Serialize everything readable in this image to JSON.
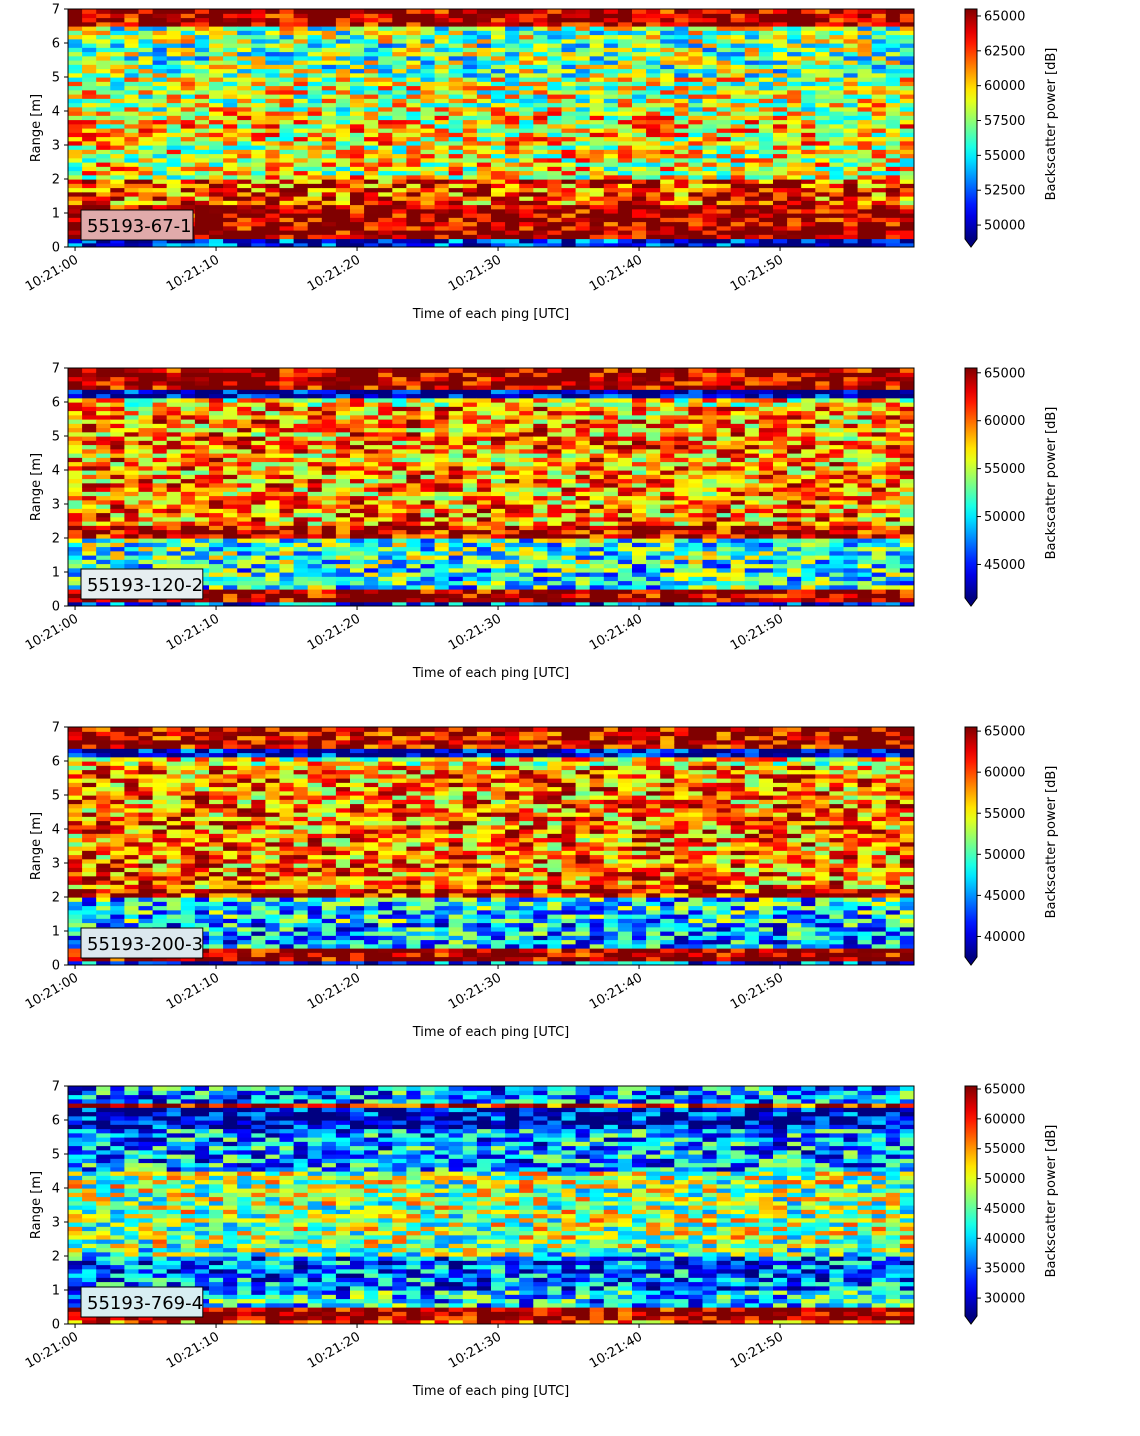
{
  "figure": {
    "colormap": "jet",
    "panels": [
      {
        "id": "55193-67-1",
        "label": "55193-67-1",
        "label_box_color": "#e0aaaa",
        "xlabel": "Time of each ping [UTC]",
        "ylabel": "Range [m]",
        "colorbar_label": "Backscatter power [dB]"
      },
      {
        "id": "55193-120-2",
        "label": "55193-120-2",
        "label_box_color": "#e6eef0",
        "xlabel": "Time of each ping [UTC]",
        "ylabel": "Range [m]",
        "colorbar_label": "Backscatter power [dB]"
      },
      {
        "id": "55193-200-3",
        "label": "55193-200-3",
        "label_box_color": "#dce8ee",
        "xlabel": "Time of each ping [UTC]",
        "ylabel": "Range [m]",
        "colorbar_label": "Backscatter power [dB]"
      },
      {
        "id": "55193-769-4",
        "label": "55193-769-4",
        "label_box_color": "#d8eef2",
        "xlabel": "Time of each ping [UTC]",
        "ylabel": "Range [m]",
        "colorbar_label": "Backscatter power [dB]"
      }
    ]
  },
  "chart_data": [
    {
      "type": "heatmap",
      "title": "",
      "annotation": "55193-67-1",
      "xlabel": "Time of each ping [UTC]",
      "ylabel": "Range [m]",
      "x_range": [
        "10:21:00",
        "10:21:59"
      ],
      "x_ticks": [
        "10:21:00",
        "10:21:10",
        "10:21:20",
        "10:21:30",
        "10:21:40",
        "10:21:50"
      ],
      "ylim": [
        0,
        7
      ],
      "y_ticks": [
        0,
        1,
        2,
        3,
        4,
        5,
        6,
        7
      ],
      "colorbar": {
        "label": "Backscatter power [dB]",
        "min": 49000,
        "max": 65500,
        "ticks": [
          50000,
          52500,
          55000,
          57500,
          60000,
          62500,
          65000
        ],
        "extend": "min"
      },
      "range_profile": [
        [
          0.0,
          0.2,
          50500
        ],
        [
          0.2,
          1.2,
          65500
        ],
        [
          1.2,
          1.55,
          62000
        ],
        [
          1.55,
          2.0,
          62500
        ],
        [
          2.0,
          3.0,
          59000
        ],
        [
          3.0,
          4.0,
          59500
        ],
        [
          4.0,
          5.0,
          58500
        ],
        [
          5.0,
          6.0,
          57000
        ],
        [
          6.0,
          6.45,
          57500
        ],
        [
          6.45,
          7.0,
          65500
        ]
      ]
    },
    {
      "type": "heatmap",
      "title": "",
      "annotation": "55193-120-2",
      "xlabel": "Time of each ping [UTC]",
      "ylabel": "Range [m]",
      "x_range": [
        "10:21:00",
        "10:21:59"
      ],
      "x_ticks": [
        "10:21:00",
        "10:21:10",
        "10:21:20",
        "10:21:30",
        "10:21:40",
        "10:21:50"
      ],
      "ylim": [
        0,
        7
      ],
      "y_ticks": [
        0,
        1,
        2,
        3,
        4,
        5,
        6,
        7
      ],
      "colorbar": {
        "label": "Backscatter power [dB]",
        "min": 41500,
        "max": 65500,
        "ticks": [
          45000,
          50000,
          55000,
          60000,
          65000
        ],
        "extend": "min"
      },
      "range_profile": [
        [
          0.0,
          0.15,
          45000
        ],
        [
          0.15,
          0.55,
          65500
        ],
        [
          0.55,
          1.3,
          51000
        ],
        [
          1.3,
          2.0,
          52000
        ],
        [
          2.0,
          2.4,
          64500
        ],
        [
          2.4,
          5.9,
          59000
        ],
        [
          5.9,
          6.15,
          57000
        ],
        [
          6.15,
          6.35,
          42000
        ],
        [
          6.35,
          7.0,
          65500
        ]
      ]
    },
    {
      "type": "heatmap",
      "title": "",
      "annotation": "55193-200-3",
      "xlabel": "Time of each ping [UTC]",
      "ylabel": "Range [m]",
      "x_range": [
        "10:21:00",
        "10:21:59"
      ],
      "x_ticks": [
        "10:21:00",
        "10:21:10",
        "10:21:20",
        "10:21:30",
        "10:21:40",
        "10:21:50"
      ],
      "ylim": [
        0,
        7
      ],
      "y_ticks": [
        0,
        1,
        2,
        3,
        4,
        5,
        6,
        7
      ],
      "colorbar": {
        "label": "Backscatter power [dB]",
        "min": 37500,
        "max": 65500,
        "ticks": [
          40000,
          45000,
          50000,
          55000,
          60000,
          65000
        ],
        "extend": "min"
      },
      "range_profile": [
        [
          0.0,
          0.15,
          42000
        ],
        [
          0.15,
          0.5,
          65500
        ],
        [
          0.5,
          1.3,
          46000
        ],
        [
          1.3,
          2.0,
          47500
        ],
        [
          2.0,
          2.3,
          63000
        ],
        [
          2.3,
          5.9,
          58500
        ],
        [
          5.9,
          6.1,
          55000
        ],
        [
          6.1,
          6.4,
          39000
        ],
        [
          6.4,
          7.0,
          64500
        ]
      ]
    },
    {
      "type": "heatmap",
      "title": "",
      "annotation": "55193-769-4",
      "xlabel": "Time of each ping [UTC]",
      "ylabel": "Range [m]",
      "x_range": [
        "10:21:00",
        "10:21:59"
      ],
      "x_ticks": [
        "10:21:00",
        "10:21:10",
        "10:21:20",
        "10:21:30",
        "10:21:40",
        "10:21:50"
      ],
      "ylim": [
        0,
        7
      ],
      "y_ticks": [
        0,
        1,
        2,
        3,
        4,
        5,
        6,
        7
      ],
      "colorbar": {
        "label": "Backscatter power [dB]",
        "min": 27000,
        "max": 65500,
        "ticks": [
          30000,
          35000,
          40000,
          45000,
          50000,
          55000,
          60000,
          65000
        ],
        "extend": "min"
      },
      "range_profile": [
        [
          0.0,
          0.1,
          58000
        ],
        [
          0.1,
          0.5,
          65500
        ],
        [
          0.5,
          1.0,
          40000
        ],
        [
          1.0,
          2.0,
          36000
        ],
        [
          2.0,
          2.3,
          45000
        ],
        [
          2.3,
          4.5,
          47500
        ],
        [
          4.5,
          5.8,
          38000
        ],
        [
          5.8,
          6.4,
          30000
        ],
        [
          6.4,
          6.55,
          62000
        ],
        [
          6.55,
          7.0,
          38000
        ]
      ]
    }
  ]
}
